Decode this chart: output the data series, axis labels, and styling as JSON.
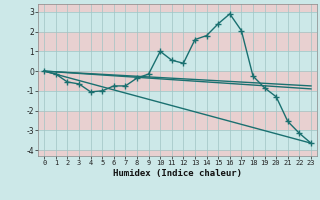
{
  "xlabel": "Humidex (Indice chaleur)",
  "background_color": "#cce8e8",
  "grid_color": "#b0cece",
  "line_color": "#1a7070",
  "xlim": [
    -0.5,
    23.5
  ],
  "ylim": [
    -4.3,
    3.4
  ],
  "yticks": [
    -4,
    -3,
    -2,
    -1,
    0,
    1,
    2,
    3
  ],
  "xticks": [
    0,
    1,
    2,
    3,
    4,
    5,
    6,
    7,
    8,
    9,
    10,
    11,
    12,
    13,
    14,
    15,
    16,
    17,
    18,
    19,
    20,
    21,
    22,
    23
  ],
  "curve1_x": [
    0,
    1,
    2,
    3,
    4,
    5,
    6,
    7,
    8,
    9,
    10,
    11,
    12,
    13,
    14,
    15,
    16,
    17,
    18,
    19,
    20,
    21,
    22,
    23
  ],
  "curve1_y": [
    0.0,
    -0.15,
    -0.55,
    -0.65,
    -1.05,
    -1.0,
    -0.75,
    -0.75,
    -0.35,
    -0.15,
    1.0,
    0.55,
    0.4,
    1.6,
    1.8,
    2.4,
    2.9,
    2.05,
    -0.25,
    -0.85,
    -1.3,
    -2.55,
    -3.15,
    -3.65
  ],
  "curve2_x": [
    0,
    23
  ],
  "curve2_y": [
    0.0,
    -0.75
  ],
  "curve3_x": [
    0,
    23
  ],
  "curve3_y": [
    0.0,
    -0.9
  ],
  "curve4_x": [
    0,
    23
  ],
  "curve4_y": [
    0.0,
    -3.65
  ],
  "hband_colors": [
    "#e8d0d0",
    "#cce8e8"
  ],
  "hband_ranges": [
    [
      -4.3,
      -4
    ],
    [
      -4,
      -3
    ],
    [
      -3,
      -2
    ],
    [
      -2,
      -1
    ],
    [
      -1,
      0
    ],
    [
      0,
      1
    ],
    [
      1,
      2
    ],
    [
      2,
      3
    ],
    [
      3,
      3.4
    ]
  ],
  "hband_fills": [
    1,
    0,
    1,
    0,
    1,
    0,
    1,
    0,
    1
  ]
}
